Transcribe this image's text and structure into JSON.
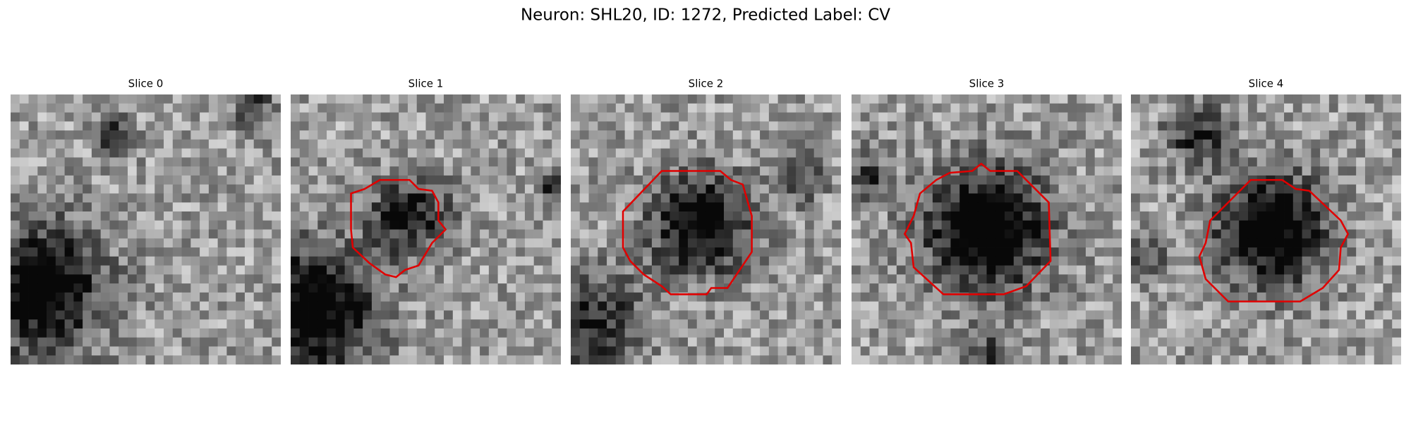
{
  "title": "Neuron: SHL20, ID: 1272, Predicted Label: CV",
  "panels": [
    {
      "title": "Slice 0"
    },
    {
      "title": "Slice 1"
    },
    {
      "title": "Slice 2"
    },
    {
      "title": "Slice 3"
    },
    {
      "title": "Slice 4"
    }
  ]
}
